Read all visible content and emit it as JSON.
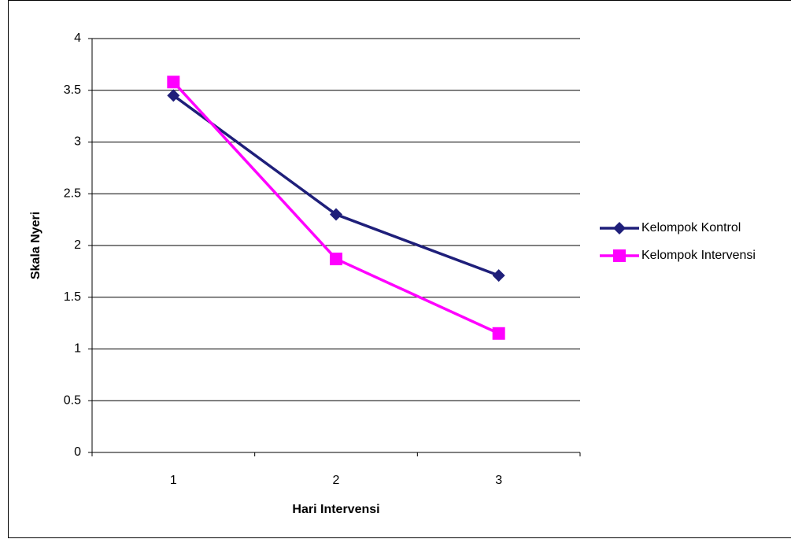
{
  "chart_data": {
    "type": "line",
    "x_label": "Hari Intervensi",
    "y_label": "Skala Nyeri",
    "categories": [
      "1",
      "2",
      "3"
    ],
    "series": [
      {
        "name": "Kelompok Kontrol",
        "color": "#1f1f7a",
        "marker": "diamond",
        "values": [
          3.45,
          2.3,
          1.71
        ]
      },
      {
        "name": "Kelompok Intervensi",
        "color": "#ff00ff",
        "marker": "square",
        "values": [
          3.58,
          1.87,
          1.15
        ]
      }
    ],
    "ylim": [
      0,
      4
    ],
    "yticks": [
      0,
      0.5,
      1,
      1.5,
      2,
      2.5,
      3,
      3.5,
      4
    ],
    "grid": true,
    "legend": "right"
  }
}
